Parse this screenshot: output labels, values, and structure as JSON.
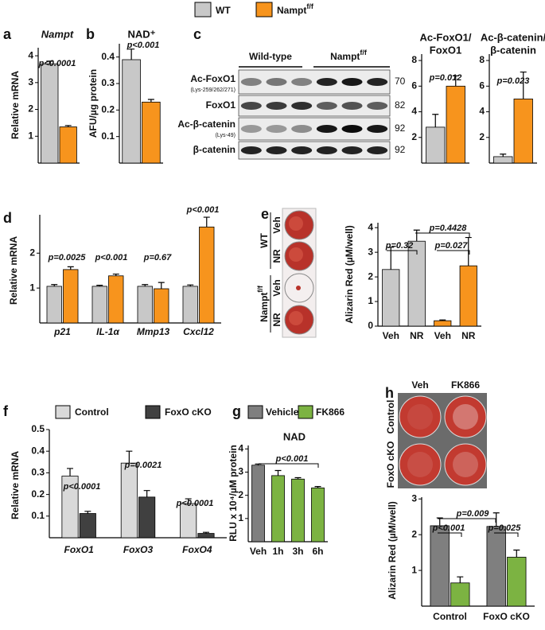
{
  "legend": [
    {
      "name": "WT",
      "color": "#c8c8c8"
    },
    {
      "name": "Nampt",
      "superscript": "f/f",
      "color": "#f7941d"
    }
  ],
  "blot": {
    "panel": "c",
    "groups": [
      {
        "name": "Wild-type"
      },
      {
        "name": "Nampt",
        "superscript": "f/f"
      }
    ],
    "rows": [
      {
        "label": "Ac-FoxO1",
        "sublabel": "(Lys-259/262/271)",
        "mw": 70
      },
      {
        "label": "FoxO1",
        "mw": 82
      },
      {
        "label": "Ac-β-catenin",
        "sublabel": "(Lys-49)",
        "mw": 92
      },
      {
        "label": "β-catenin",
        "mw": 92
      }
    ]
  },
  "wells_e": {
    "panel": "e",
    "groups": [
      {
        "name": "WT",
        "rows": [
          "Veh",
          "NR"
        ]
      },
      {
        "name": "Nampt",
        "superscript": "f/f",
        "rows": [
          "Veh",
          "NR"
        ]
      }
    ]
  },
  "wells_h": {
    "panel": "h",
    "columns": [
      "Veh",
      "FK866"
    ],
    "rows": [
      "Control",
      "FoxO cKO"
    ]
  },
  "chart_data": [
    {
      "type": "bar",
      "panel": "a",
      "title": "Nampt",
      "ylabel": "Relative mRNA",
      "categories": [
        null
      ],
      "series": [
        {
          "color": "#c8c8c8",
          "values": [
            3.7
          ],
          "errors": [
            0.1
          ]
        },
        {
          "color": "#f7941d",
          "values": [
            1.35
          ],
          "errors": [
            0.05
          ]
        }
      ],
      "ylim": [
        0,
        4.3
      ],
      "yticks": [
        1,
        2,
        3,
        4
      ],
      "annotations": [
        "p<0.0001"
      ]
    },
    {
      "type": "bar",
      "panel": "b",
      "title": "NAD⁺",
      "ylabel": "AFU/µg protein",
      "categories": [
        null
      ],
      "series": [
        {
          "color": "#c8c8c8",
          "values": [
            0.39
          ],
          "errors": [
            0.04
          ]
        },
        {
          "color": "#f7941d",
          "values": [
            0.23
          ],
          "errors": [
            0.01
          ]
        }
      ],
      "ylim": [
        0,
        0.45
      ],
      "yticks": [
        0.1,
        0.2,
        0.3,
        0.4
      ],
      "annotations": [
        "p<0.001"
      ]
    },
    {
      "type": "bar",
      "title": [
        "Ac-FoxO1/",
        "FoxO1"
      ],
      "categories": [
        null
      ],
      "series": [
        {
          "color": "#c8c8c8",
          "values": [
            2.8
          ],
          "errors": [
            1.0
          ]
        },
        {
          "color": "#f7941d",
          "values": [
            6.0
          ],
          "errors": [
            0.8
          ]
        }
      ],
      "ylim": [
        0,
        8.5
      ],
      "yticks": [
        2,
        4,
        6,
        8
      ],
      "annotations": [
        "p=0.012"
      ]
    },
    {
      "type": "bar",
      "title": [
        "Ac-β-catenin/",
        "β-catenin"
      ],
      "categories": [
        null
      ],
      "series": [
        {
          "color": "#c8c8c8",
          "values": [
            0.5
          ],
          "errors": [
            0.2
          ]
        },
        {
          "color": "#f7941d",
          "values": [
            5.0
          ],
          "errors": [
            2.1
          ]
        }
      ],
      "ylim": [
        0,
        8.5
      ],
      "yticks": [
        2,
        4,
        6,
        8
      ],
      "annotations": [
        "p=0.023"
      ]
    },
    {
      "type": "bar",
      "panel": "d",
      "ylabel": "Relative mRNA",
      "categories": [
        "p21",
        "IL-1α",
        "Mmp13",
        "Cxcl12"
      ],
      "series": [
        {
          "color": "#c8c8c8",
          "values": [
            1.05,
            1.05,
            1.05,
            1.05
          ],
          "errors": [
            0.05,
            0.03,
            0.05,
            0.04
          ]
        },
        {
          "color": "#f7941d",
          "values": [
            1.53,
            1.35,
            0.98,
            2.75
          ],
          "errors": [
            0.08,
            0.05,
            0.18,
            0.28
          ]
        }
      ],
      "ylim": [
        0,
        3.1
      ],
      "yticks": [
        1,
        2
      ],
      "annotations": [
        "p=0.0025",
        "p<0.001",
        "p=0.67",
        "p<0.001"
      ]
    },
    {
      "type": "bar",
      "ylabel": "Alizarin Red (µM/well)",
      "categories": [
        "Veh",
        "NR",
        "Veh",
        "NR"
      ],
      "series": [
        {
          "colors": [
            "#c8c8c8",
            "#c8c8c8",
            "#f7941d",
            "#f7941d"
          ],
          "values": [
            2.3,
            3.45,
            0.22,
            2.45
          ],
          "errors": [
            0.9,
            0.45,
            0.03,
            1.15
          ]
        }
      ],
      "ylim": [
        0,
        4.2
      ],
      "yticks": [
        0,
        1,
        2,
        3,
        4
      ],
      "annotations": [
        "p=0.4428",
        "p=0.32",
        "p=0.027"
      ]
    },
    {
      "type": "bar",
      "panel": "f",
      "ylabel": "Relative mRNA",
      "categories": [
        "FoxO1",
        "FoxO3",
        "FoxO4"
      ],
      "series": [
        {
          "name": "Control",
          "color": "#d9d9d9",
          "values": [
            0.285,
            0.345,
            0.158
          ],
          "errors": [
            0.035,
            0.055,
            0.022
          ]
        },
        {
          "name": "FoxO cKO",
          "color": "#404040",
          "values": [
            0.112,
            0.188,
            0.02
          ],
          "errors": [
            0.01,
            0.03,
            0.005
          ]
        }
      ],
      "ylim": [
        0,
        0.5
      ],
      "yticks": [
        0.1,
        0.2,
        0.3,
        0.4,
        0.5
      ],
      "annotations": [
        "p<0.0001",
        "p=0.0021",
        "p<0.0001"
      ]
    },
    {
      "type": "bar",
      "panel": "g",
      "title": "NAD",
      "ylabel": "RLU x 10⁴/µM protein",
      "categories": [
        "Veh",
        "1h",
        "3h",
        "6h"
      ],
      "legend": [
        {
          "name": "Vehicle",
          "color": "#7f7f7f"
        },
        {
          "name": "FK866",
          "color": "#7cb342"
        }
      ],
      "series": [
        {
          "colors": [
            "#7f7f7f",
            "#7cb342",
            "#7cb342",
            "#7cb342"
          ],
          "values": [
            3.3,
            2.85,
            2.7,
            2.32
          ],
          "errors": [
            0.05,
            0.22,
            0.06,
            0.06
          ]
        }
      ],
      "ylim": [
        0,
        4.15
      ],
      "yticks": [
        1,
        2,
        3,
        4
      ],
      "annotations": [
        "p<0.001"
      ]
    },
    {
      "type": "bar",
      "ylabel": "Alizarin Red (µM/well)",
      "categories": [
        "Control",
        "FoxO cKO"
      ],
      "series": [
        {
          "color": "#7f7f7f",
          "values": [
            2.25,
            2.23
          ],
          "errors": [
            0.22,
            0.38
          ]
        },
        {
          "color": "#7cb342",
          "values": [
            0.65,
            1.37
          ],
          "errors": [
            0.17,
            0.2
          ]
        }
      ],
      "ylim": [
        0,
        3.05
      ],
      "yticks": [
        1,
        2,
        3
      ],
      "annotations": [
        "p<0.001",
        "p=0.025",
        "p=0.009"
      ]
    }
  ]
}
